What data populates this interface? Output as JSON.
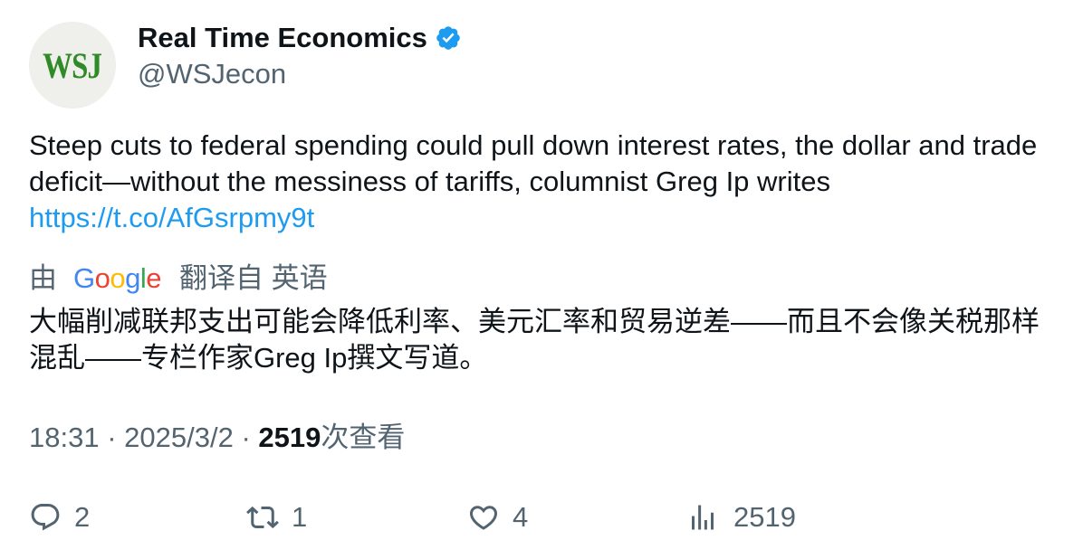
{
  "author": {
    "avatar_text": "WSJ",
    "display_name": "Real Time Economics",
    "handle": "@WSJecon",
    "verified_icon": "verified-badge-icon"
  },
  "tweet": {
    "text": "Steep cuts to federal spending could pull down interest rates, the dollar and trade deficit—without the messiness of tariffs, columnist Greg Ip writes",
    "link": "https://t.co/AfGsrpmy9t"
  },
  "translation": {
    "prefix": "由",
    "provider_letters": [
      "G",
      "o",
      "o",
      "g",
      "l",
      "e"
    ],
    "suffix": "翻译自 英语",
    "text": "大幅削减联邦支出可能会降低利率、美元汇率和贸易逆差——而且不会像关税那样混乱——专栏作家Greg Ip撰文写道。"
  },
  "meta": {
    "time": "18:31",
    "separator": "·",
    "date": "2025/3/2",
    "views_count": "2519",
    "views_label": "次查看"
  },
  "actions": {
    "reply_count": "2",
    "retweet_count": "1",
    "like_count": "4",
    "views_count": "2519"
  },
  "colors": {
    "text": "#0f1419",
    "secondary": "#536471",
    "link": "#1d9bf0",
    "avatar_green": "#2f8a27"
  }
}
